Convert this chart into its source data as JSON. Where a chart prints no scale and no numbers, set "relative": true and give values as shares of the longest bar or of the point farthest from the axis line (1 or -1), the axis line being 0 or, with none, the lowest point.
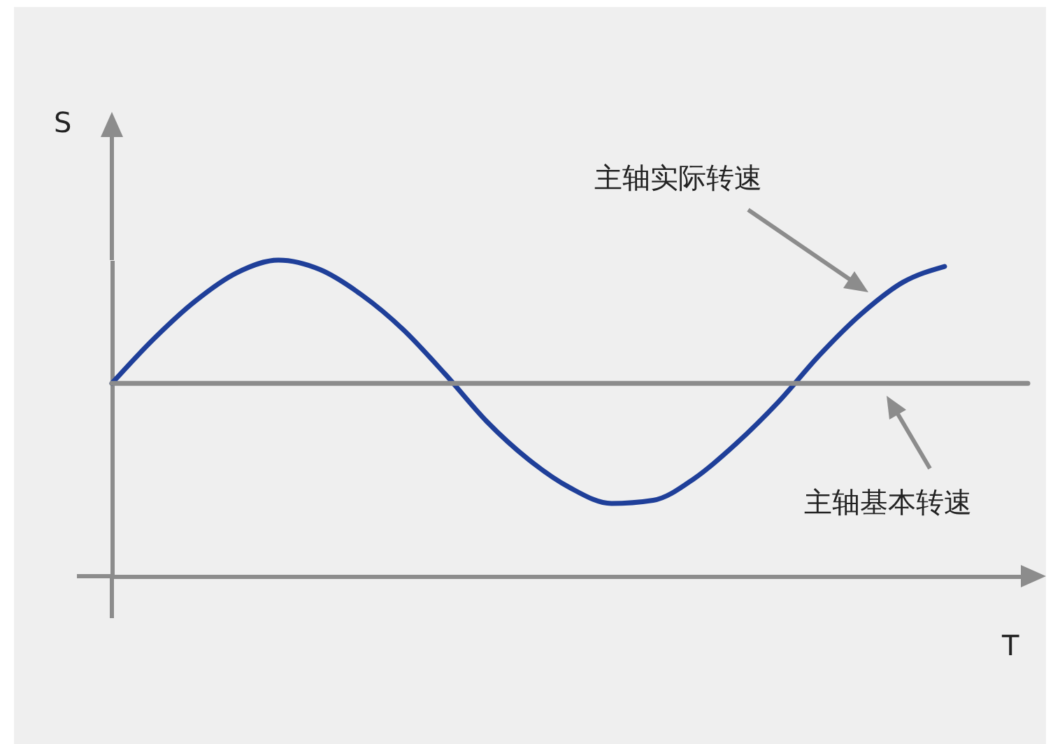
{
  "chart_data": {
    "type": "line",
    "relative": true,
    "xlabel": "T",
    "ylabel": "S",
    "categories": [
      null,
      null,
      null,
      null,
      null,
      null,
      null,
      null,
      null,
      null,
      null,
      null,
      null,
      null,
      null,
      null,
      null,
      null,
      null,
      null,
      null,
      null,
      null
    ],
    "series": [
      {
        "name": "主轴实际转速",
        "color": "#1f3f99",
        "values": [
          0.61,
          0.75,
          0.87,
          0.96,
          1.0,
          0.97,
          0.89,
          0.78,
          0.64,
          0.49,
          0.37,
          0.28,
          0.23,
          0.24,
          0.31,
          0.42,
          0.55,
          0.7,
          0.83,
          0.93,
          0.98,
          null,
          null
        ]
      },
      {
        "name": "主轴基本转速",
        "color": "#8c8c8c",
        "values": [
          0.61,
          0.61,
          0.61,
          0.61,
          0.61,
          0.61,
          0.61,
          0.61,
          0.61,
          0.61,
          0.61,
          0.61,
          0.61,
          0.61,
          0.61,
          0.61,
          0.61,
          0.61,
          0.61,
          0.61,
          0.61,
          0.61,
          0.61
        ]
      }
    ]
  }
}
